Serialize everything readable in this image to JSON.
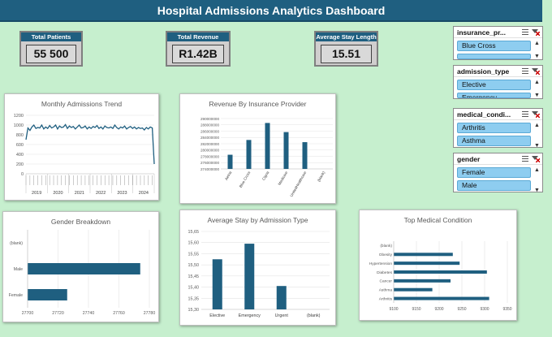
{
  "header": {
    "title": "Hospital Admissions Analytics Dashboard"
  },
  "kpis": {
    "total_patients": {
      "label": "Total Patients",
      "value": "55 500"
    },
    "total_revenue": {
      "label": "Total Revenue",
      "value": "R1.42B"
    },
    "average_stay": {
      "label": "Average Stay Length",
      "value": "15.51"
    }
  },
  "slicers": {
    "insurance": {
      "title": "insurance_pr...",
      "items": [
        "Blue Cross"
      ],
      "partial": "Cigna"
    },
    "admission": {
      "title": "admission_type",
      "items": [
        "Elective"
      ],
      "partial": "Emergency"
    },
    "medical": {
      "title": "medical_condi...",
      "items": [
        "Arthritis",
        "Asthma"
      ]
    },
    "gender": {
      "title": "gender",
      "items": [
        "Female",
        "Male"
      ]
    }
  },
  "colors": {
    "accent": "#1f5f80",
    "background": "#c6efce",
    "slicer_item": "#8ecdf0"
  },
  "chart_data": [
    {
      "id": "monthly",
      "type": "line",
      "title": "Monthly Admissions Trend",
      "ylim": [
        0,
        1200
      ],
      "yticks": [
        "0",
        "200",
        "400",
        "600",
        "800",
        "1000",
        "1200"
      ],
      "years": [
        "2019",
        "2020",
        "2021",
        "2022",
        "2023",
        "2024"
      ],
      "values": [
        700,
        940,
        890,
        960,
        1000,
        930,
        950,
        940,
        1000,
        920,
        960,
        930,
        990,
        940,
        960,
        1000,
        920,
        980,
        950,
        960,
        1010,
        930,
        980,
        950,
        970,
        920,
        960,
        1000,
        940,
        950,
        980,
        920,
        960,
        930,
        970,
        950,
        990,
        930,
        960,
        920,
        980,
        950,
        940,
        960,
        930,
        1000,
        950,
        920,
        960,
        940,
        980,
        920,
        950,
        970,
        930,
        960,
        920,
        950,
        930,
        940,
        900,
        950,
        920,
        960,
        940,
        200
      ]
    },
    {
      "id": "revenue",
      "type": "bar",
      "title": "Revenue By Insurance Provider",
      "categories": [
        "Aetna",
        "Blue Cross",
        "Cigna",
        "Medicare",
        "UnitedHealthcare",
        "(blank)"
      ],
      "values": [
        278500000,
        283200000,
        288600000,
        285700000,
        282500000,
        null
      ],
      "ylim": [
        274000000,
        290000000
      ],
      "yticks": [
        "274000000",
        "276000000",
        "278000000",
        "280000000",
        "282000000",
        "284000000",
        "286000000",
        "288000000",
        "290000000"
      ]
    },
    {
      "id": "gender",
      "type": "bar",
      "orientation": "horizontal",
      "title": "Gender Breakdown",
      "categories": [
        "(blank)",
        "Male",
        "Female"
      ],
      "values": [
        null,
        27774,
        27726
      ],
      "xlim": [
        27700,
        27780
      ],
      "xticks": [
        "27700",
        "27720",
        "27740",
        "27760",
        "27780"
      ]
    },
    {
      "id": "stay",
      "type": "bar",
      "title": "Average Stay by Admission Type",
      "categories": [
        "Elective",
        "Emergency",
        "Urgent",
        "(blank)"
      ],
      "values": [
        15.525,
        15.595,
        15.405,
        null
      ],
      "ylim": [
        15.3,
        15.65
      ],
      "yticks": [
        "15,30",
        "15,35",
        "15,40",
        "15,45",
        "15,50",
        "15,55",
        "15,60",
        "15,65"
      ]
    },
    {
      "id": "condition",
      "type": "bar",
      "orientation": "horizontal",
      "title": "Top Medical Condition",
      "categories": [
        "(blank)",
        "Obesity",
        "Hypertension",
        "Diabetes",
        "Cancer",
        "Asthma",
        "Arthritis"
      ],
      "values": [
        null,
        9230,
        9245,
        9305,
        9225,
        9185,
        9310
      ],
      "xlim": [
        9100,
        9350
      ],
      "xticks": [
        "9100",
        "9150",
        "9200",
        "9250",
        "9300",
        "9350"
      ]
    }
  ]
}
